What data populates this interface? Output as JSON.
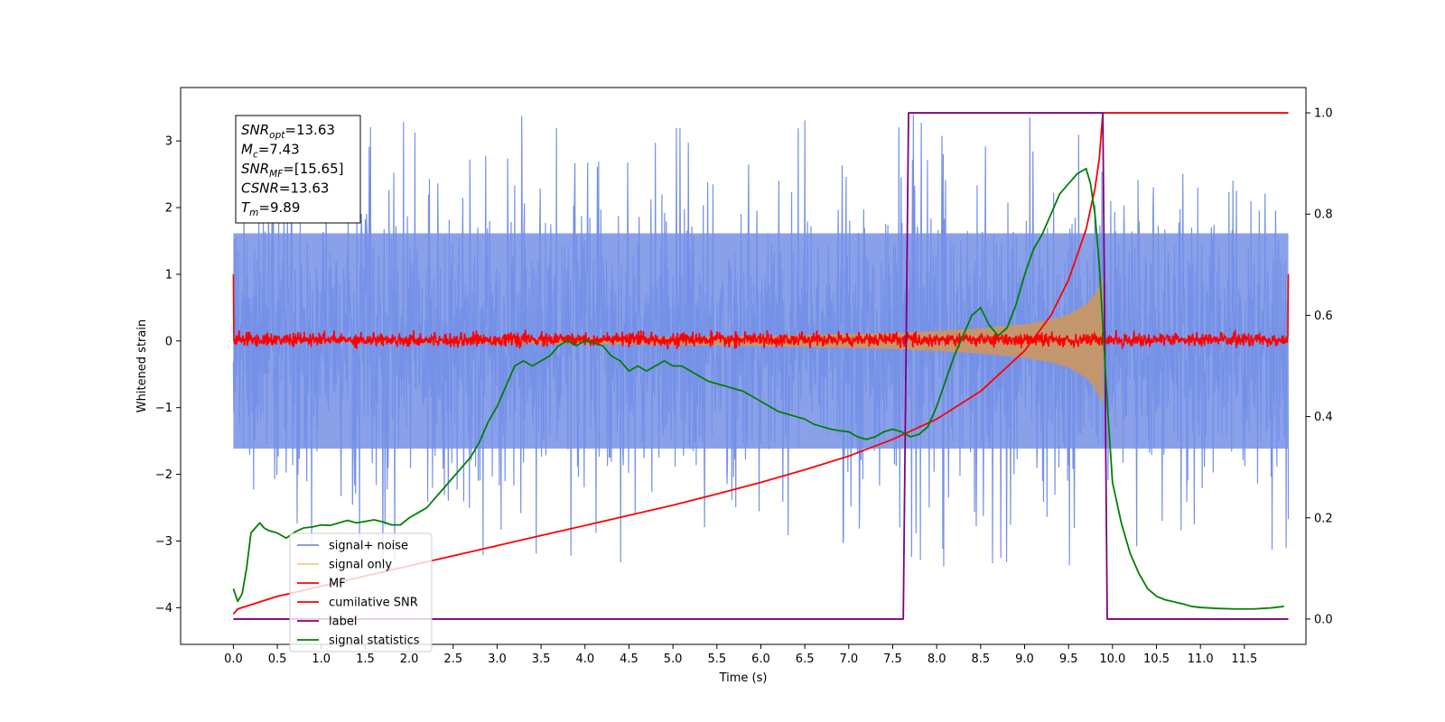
{
  "chart_data": {
    "type": "line",
    "title": "",
    "xlabel": "Time (s)",
    "ylabel": "Whitened strain",
    "xlim": [
      -0.6,
      12.2
    ],
    "ylim": [
      -4.55,
      3.8
    ],
    "y2lim": [
      -0.05,
      1.05
    ],
    "x_ticks": [
      0.0,
      0.5,
      1.0,
      1.5,
      2.0,
      2.5,
      3.0,
      3.5,
      4.0,
      4.5,
      5.0,
      5.5,
      6.0,
      6.5,
      7.0,
      7.5,
      8.0,
      8.5,
      9.0,
      9.5,
      10.0,
      10.5,
      11.0,
      11.5
    ],
    "x_tick_labels": [
      "0.0",
      "0.5",
      "1.0",
      "1.5",
      "2.0",
      "2.5",
      "3.0",
      "3.5",
      "4.0",
      "4.5",
      "5.0",
      "5.5",
      "6.0",
      "6.5",
      "7.0",
      "7.5",
      "8.0",
      "8.5",
      "9.0",
      "9.5",
      "10.0",
      "10.5",
      "11.0",
      "11.5"
    ],
    "y_ticks": [
      3,
      2,
      1,
      0,
      -1,
      -2,
      -3,
      -4
    ],
    "y_tick_labels": [
      "3",
      "2",
      "1",
      "0",
      "−1",
      "−2",
      "−3",
      "−4"
    ],
    "y2_ticks": [
      1.0,
      0.8,
      0.6,
      0.4,
      0.2,
      0.0
    ],
    "y2_tick_labels": [
      "1.0",
      "0.8",
      "0.6",
      "0.4",
      "0.2",
      "0.0"
    ],
    "grid": false,
    "legend_placement": "lower-left",
    "annotation": {
      "lines": [
        {
          "base": "SNR",
          "sub": "opt",
          "rest": "=13.63"
        },
        {
          "base": "M",
          "sub": "c",
          "rest": "=7.43"
        },
        {
          "base": "SNR",
          "sub": "MF",
          "rest": "=[15.65]"
        },
        {
          "base": "CSNR",
          "sub": "",
          "rest": "=13.63"
        },
        {
          "base": "T",
          "sub": "m",
          "rest": "=9.89"
        }
      ]
    },
    "series": [
      {
        "name": "signal+ noise",
        "axis": "left",
        "color": "#7591e6",
        "kind": "noise-band",
        "x_range": [
          0.0,
          12.0
        ],
        "envelope_lower": -1.7,
        "envelope_upper": 1.7,
        "peak_max": 3.4,
        "peak_min": -3.6
      },
      {
        "name": "signal only",
        "axis": "left",
        "color": "#f5c97a",
        "kind": "chirp",
        "x": [
          0.0,
          3.0,
          5.0,
          6.5,
          7.5,
          8.0,
          8.5,
          9.0,
          9.3,
          9.5,
          9.7,
          9.8,
          9.89,
          9.9
        ],
        "amplitude": [
          0.005,
          0.03,
          0.06,
          0.09,
          0.12,
          0.15,
          0.19,
          0.25,
          0.32,
          0.4,
          0.55,
          0.7,
          0.95,
          0.0
        ]
      },
      {
        "name": "MF",
        "axis": "left",
        "color": "#ff0000",
        "kind": "noise-band",
        "x_range": [
          0.0,
          12.0
        ],
        "envelope_lower": -0.08,
        "envelope_upper": 0.12,
        "edge_value": 1.0
      },
      {
        "name": "cumilative SNR",
        "axis": "right",
        "color": "#ff0000",
        "x": [
          0.0,
          0.05,
          0.5,
          1.0,
          1.5,
          2.0,
          2.5,
          3.0,
          3.5,
          4.0,
          4.5,
          5.0,
          5.5,
          6.0,
          6.5,
          7.0,
          7.5,
          8.0,
          8.5,
          9.0,
          9.3,
          9.5,
          9.7,
          9.8,
          9.85,
          9.89,
          12.0
        ],
        "y": [
          0.01,
          0.02,
          0.045,
          0.065,
          0.085,
          0.105,
          0.125,
          0.145,
          0.165,
          0.185,
          0.205,
          0.225,
          0.247,
          0.27,
          0.295,
          0.322,
          0.355,
          0.395,
          0.45,
          0.53,
          0.6,
          0.67,
          0.77,
          0.85,
          0.91,
          1.0,
          1.0
        ]
      },
      {
        "name": "label",
        "axis": "right",
        "color": "#800080",
        "x": [
          0.0,
          7.62,
          7.68,
          9.89,
          9.94,
          12.0
        ],
        "y": [
          0.0,
          0.0,
          1.0,
          1.0,
          0.0,
          0.0
        ]
      },
      {
        "name": "signal statistics",
        "axis": "right",
        "color": "#008000",
        "x": [
          0.0,
          0.05,
          0.1,
          0.15,
          0.2,
          0.25,
          0.3,
          0.35,
          0.4,
          0.5,
          0.6,
          0.7,
          0.8,
          0.9,
          1.0,
          1.1,
          1.2,
          1.3,
          1.4,
          1.5,
          1.6,
          1.7,
          1.8,
          1.9,
          2.0,
          2.1,
          2.2,
          2.3,
          2.4,
          2.5,
          2.6,
          2.7,
          2.8,
          2.9,
          3.0,
          3.1,
          3.2,
          3.3,
          3.4,
          3.5,
          3.6,
          3.7,
          3.8,
          3.9,
          4.0,
          4.1,
          4.2,
          4.3,
          4.4,
          4.5,
          4.6,
          4.7,
          4.8,
          4.9,
          5.0,
          5.1,
          5.2,
          5.3,
          5.4,
          5.5,
          5.6,
          5.7,
          5.8,
          5.9,
          6.0,
          6.1,
          6.2,
          6.3,
          6.4,
          6.5,
          6.6,
          6.7,
          6.8,
          6.9,
          7.0,
          7.1,
          7.2,
          7.3,
          7.4,
          7.5,
          7.6,
          7.7,
          7.8,
          7.9,
          8.0,
          8.1,
          8.2,
          8.3,
          8.4,
          8.5,
          8.6,
          8.7,
          8.8,
          8.9,
          9.0,
          9.1,
          9.2,
          9.3,
          9.4,
          9.5,
          9.6,
          9.7,
          9.75,
          9.8,
          9.85,
          9.9,
          9.95,
          10.0,
          10.1,
          10.2,
          10.3,
          10.4,
          10.5,
          10.6,
          10.7,
          10.8,
          10.9,
          11.0,
          11.2,
          11.4,
          11.6,
          11.8,
          11.95
        ],
        "y": [
          0.06,
          0.035,
          0.05,
          0.1,
          0.17,
          0.18,
          0.19,
          0.18,
          0.175,
          0.17,
          0.16,
          0.172,
          0.18,
          0.182,
          0.186,
          0.185,
          0.19,
          0.195,
          0.19,
          0.193,
          0.196,
          0.192,
          0.186,
          0.186,
          0.2,
          0.21,
          0.22,
          0.24,
          0.26,
          0.28,
          0.3,
          0.32,
          0.35,
          0.39,
          0.42,
          0.46,
          0.5,
          0.51,
          0.5,
          0.51,
          0.52,
          0.54,
          0.55,
          0.54,
          0.55,
          0.545,
          0.54,
          0.52,
          0.51,
          0.49,
          0.5,
          0.49,
          0.5,
          0.51,
          0.5,
          0.5,
          0.49,
          0.48,
          0.47,
          0.465,
          0.46,
          0.455,
          0.45,
          0.44,
          0.43,
          0.42,
          0.41,
          0.405,
          0.4,
          0.395,
          0.385,
          0.38,
          0.375,
          0.372,
          0.37,
          0.36,
          0.355,
          0.36,
          0.37,
          0.375,
          0.37,
          0.36,
          0.365,
          0.38,
          0.42,
          0.47,
          0.52,
          0.56,
          0.6,
          0.615,
          0.58,
          0.56,
          0.575,
          0.62,
          0.68,
          0.73,
          0.76,
          0.8,
          0.84,
          0.86,
          0.88,
          0.89,
          0.86,
          0.8,
          0.7,
          0.55,
          0.4,
          0.27,
          0.19,
          0.13,
          0.09,
          0.06,
          0.045,
          0.038,
          0.034,
          0.03,
          0.025,
          0.023,
          0.021,
          0.02,
          0.02,
          0.022,
          0.025
        ]
      }
    ]
  }
}
